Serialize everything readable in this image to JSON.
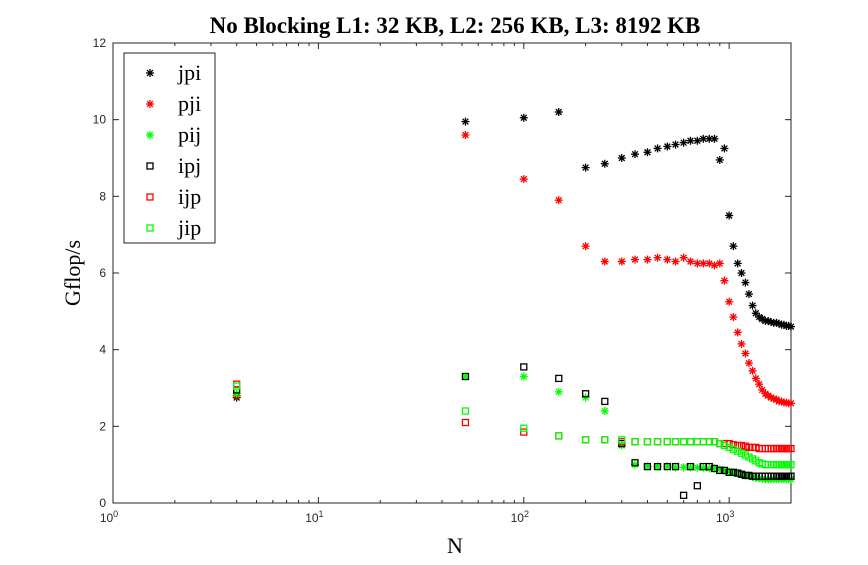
{
  "chart_data": {
    "type": "scatter",
    "title": "No Blocking  L1: 32 KB,   L2: 256 KB,   L3: 8192 KB",
    "xlabel": "N",
    "ylabel": "Gflop/s",
    "xscale": "log",
    "xlim": [
      1,
      2000
    ],
    "ylim": [
      0,
      12
    ],
    "grid": false,
    "legend_position": "top-left",
    "x_ticks": [
      {
        "base": "10",
        "exp": "0",
        "value": 1
      },
      {
        "base": "10",
        "exp": "1",
        "value": 10
      },
      {
        "base": "10",
        "exp": "2",
        "value": 100
      },
      {
        "base": "10",
        "exp": "3",
        "value": 1000
      }
    ],
    "y_ticks": [
      "0",
      "2",
      "4",
      "6",
      "8",
      "10",
      "12"
    ],
    "series": [
      {
        "name": "jpi",
        "marker": "asterisk",
        "color": "#000000",
        "x": [
          4,
          52,
          100,
          148,
          200,
          248,
          300,
          348,
          400,
          448,
          500,
          548,
          600,
          648,
          700,
          748,
          800,
          848,
          900,
          948,
          1000,
          1048,
          1100,
          1148,
          1200,
          1248,
          1300,
          1348,
          1400,
          1448,
          1500,
          1548,
          1600,
          1648,
          1700,
          1748,
          1800,
          1848,
          1900,
          1948,
          2000
        ],
        "y": [
          2.75,
          9.95,
          10.05,
          10.2,
          8.75,
          8.85,
          9.0,
          9.1,
          9.15,
          9.25,
          9.3,
          9.35,
          9.4,
          9.45,
          9.45,
          9.5,
          9.5,
          9.5,
          8.95,
          9.25,
          7.5,
          6.7,
          6.25,
          6.0,
          5.75,
          5.45,
          5.15,
          4.95,
          4.85,
          4.8,
          4.75,
          4.75,
          4.72,
          4.7,
          4.7,
          4.68,
          4.65,
          4.65,
          4.62,
          4.62,
          4.6
        ]
      },
      {
        "name": "pji",
        "marker": "asterisk",
        "color": "#ff0000",
        "x": [
          4,
          52,
          100,
          148,
          200,
          248,
          300,
          348,
          400,
          448,
          500,
          548,
          600,
          648,
          700,
          748,
          800,
          848,
          900,
          948,
          1000,
          1048,
          1100,
          1148,
          1200,
          1248,
          1300,
          1348,
          1400,
          1448,
          1500,
          1548,
          1600,
          1648,
          1700,
          1748,
          1800,
          1848,
          1900,
          1948,
          2000
        ],
        "y": [
          2.8,
          9.6,
          8.45,
          7.9,
          6.7,
          6.3,
          6.3,
          6.35,
          6.35,
          6.4,
          6.35,
          6.3,
          6.4,
          6.3,
          6.25,
          6.25,
          6.25,
          6.2,
          6.25,
          5.8,
          5.25,
          4.85,
          4.45,
          4.15,
          3.9,
          3.65,
          3.45,
          3.25,
          3.1,
          2.95,
          2.85,
          2.8,
          2.75,
          2.72,
          2.7,
          2.65,
          2.65,
          2.62,
          2.62,
          2.6,
          2.6
        ]
      },
      {
        "name": "pij",
        "marker": "asterisk",
        "color": "#00ff00",
        "x": [
          4,
          52,
          100,
          148,
          200,
          248,
          300,
          348,
          400,
          448,
          500,
          548,
          600,
          648,
          700,
          748,
          800,
          848,
          900,
          948,
          1000,
          1048,
          1100,
          1148,
          1200,
          1248,
          1300,
          1348,
          1400,
          1448,
          1500,
          1548,
          1600,
          1648,
          1700,
          1748,
          1800,
          1848,
          1900,
          1948,
          2000
        ],
        "y": [
          2.85,
          3.3,
          3.3,
          2.9,
          2.75,
          2.4,
          1.5,
          1.0,
          0.95,
          0.95,
          0.95,
          0.93,
          0.93,
          0.93,
          0.92,
          0.92,
          0.9,
          0.9,
          0.88,
          0.85,
          0.82,
          0.8,
          0.78,
          0.75,
          0.72,
          0.7,
          0.68,
          0.65,
          0.65,
          0.63,
          0.62,
          0.62,
          0.62,
          0.62,
          0.62,
          0.62,
          0.62,
          0.62,
          0.62,
          0.62,
          0.62
        ]
      },
      {
        "name": "ipj",
        "marker": "square",
        "color": "#000000",
        "x": [
          4,
          52,
          100,
          148,
          200,
          248,
          300,
          348,
          400,
          448,
          500,
          548,
          600,
          648,
          700,
          748,
          800,
          848,
          900,
          948,
          1000,
          1048,
          1100,
          1148,
          1200,
          1248,
          1300,
          1348,
          1400,
          1448,
          1500,
          1548,
          1600,
          1648,
          1700,
          1748,
          1800,
          1848,
          1900,
          1948,
          2000
        ],
        "y": [
          2.95,
          3.3,
          3.55,
          3.25,
          2.85,
          2.65,
          1.55,
          1.05,
          0.95,
          0.95,
          0.95,
          0.95,
          0.2,
          0.95,
          0.45,
          0.95,
          0.95,
          0.9,
          0.85,
          0.85,
          0.8,
          0.8,
          0.78,
          0.75,
          0.72,
          0.72,
          0.7,
          0.7,
          0.7,
          0.7,
          0.7,
          0.7,
          0.7,
          0.7,
          0.7,
          0.7,
          0.7,
          0.7,
          0.7,
          0.7,
          0.7
        ]
      },
      {
        "name": "ijp",
        "marker": "square",
        "color": "#ff0000",
        "x": [
          4,
          52,
          100,
          148,
          200,
          248,
          300,
          348,
          400,
          448,
          500,
          548,
          600,
          648,
          700,
          748,
          800,
          848,
          900,
          948,
          1000,
          1048,
          1100,
          1148,
          1200,
          1248,
          1300,
          1348,
          1400,
          1448,
          1500,
          1548,
          1600,
          1648,
          1700,
          1748,
          1800,
          1848,
          1900,
          1948,
          2000
        ],
        "y": [
          3.1,
          2.1,
          1.85,
          1.75,
          1.65,
          1.65,
          1.6,
          1.6,
          1.6,
          1.6,
          1.6,
          1.6,
          1.6,
          1.6,
          1.6,
          1.6,
          1.6,
          1.6,
          1.55,
          1.55,
          1.55,
          1.52,
          1.5,
          1.5,
          1.48,
          1.45,
          1.45,
          1.45,
          1.42,
          1.42,
          1.42,
          1.42,
          1.42,
          1.42,
          1.42,
          1.42,
          1.42,
          1.42,
          1.42,
          1.42,
          1.42
        ]
      },
      {
        "name": "jip",
        "marker": "square",
        "color": "#00ff00",
        "x": [
          4,
          52,
          100,
          148,
          200,
          248,
          300,
          348,
          400,
          448,
          500,
          548,
          600,
          648,
          700,
          748,
          800,
          848,
          900,
          948,
          1000,
          1048,
          1100,
          1148,
          1200,
          1248,
          1300,
          1348,
          1400,
          1448,
          1500,
          1548,
          1600,
          1648,
          1700,
          1748,
          1800,
          1848,
          1900,
          1948,
          2000
        ],
        "y": [
          3.05,
          2.4,
          1.95,
          1.75,
          1.65,
          1.65,
          1.65,
          1.6,
          1.6,
          1.6,
          1.6,
          1.6,
          1.6,
          1.6,
          1.6,
          1.6,
          1.6,
          1.6,
          1.55,
          1.5,
          1.45,
          1.4,
          1.35,
          1.3,
          1.25,
          1.2,
          1.15,
          1.1,
          1.05,
          1.02,
          1.0,
          1.0,
          1.0,
          1.0,
          1.0,
          1.0,
          1.0,
          1.0,
          1.0,
          1.0,
          1.0
        ]
      }
    ]
  }
}
